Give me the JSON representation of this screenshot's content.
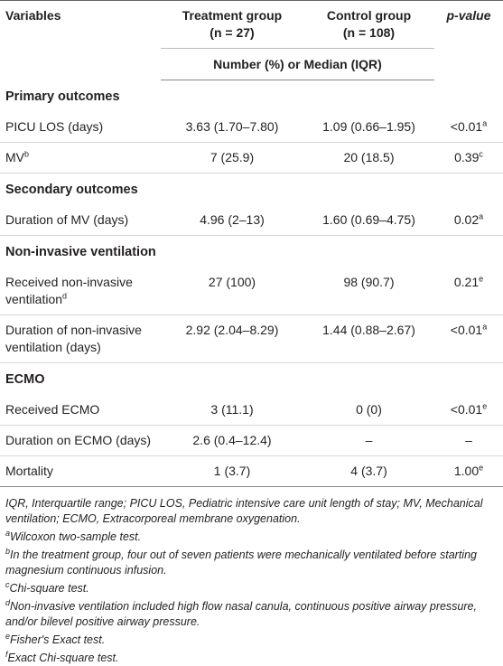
{
  "header": {
    "variables": "Variables",
    "treatment": [
      "Treatment group",
      "(n = 27)"
    ],
    "control": [
      "Control group",
      "(n = 108)"
    ],
    "p_value": "p-value",
    "subheader": "Number (%) or Median (IQR)"
  },
  "sections": [
    {
      "title": "Primary outcomes",
      "rows": [
        {
          "label": "PICU LOS (days)",
          "treatment": "3.63 (1.70–7.80)",
          "control": "1.09 (0.66–1.95)",
          "p": "<0.01",
          "p_note": "a"
        },
        {
          "label": "MV",
          "label_note": "b",
          "treatment": "7 (25.9)",
          "control": "20 (18.5)",
          "p": "0.39",
          "p_note": "c"
        }
      ]
    },
    {
      "title": "Secondary outcomes",
      "rows": [
        {
          "label": "Duration of MV (days)",
          "treatment": "4.96 (2–13)",
          "control": "1.60 (0.69–4.75)",
          "p": "0.02",
          "p_note": "a"
        }
      ]
    },
    {
      "title": "Non-invasive ventilation",
      "rows": [
        {
          "label": "Received non-invasive ventilation",
          "label_note": "d",
          "treatment": "27 (100)",
          "control": "98 (90.7)",
          "p": "0.21",
          "p_note": "e"
        },
        {
          "label": "Duration of non-invasive ventilation (days)",
          "treatment": "2.92 (2.04–8.29)",
          "control": "1.44 (0.88–2.67)",
          "p": "<0.01",
          "p_note": "a"
        }
      ]
    },
    {
      "title": "ECMO",
      "rows": [
        {
          "label": "Received ECMO",
          "treatment": "3 (11.1)",
          "control": "0 (0)",
          "p": "<0.01",
          "p_note": "e"
        },
        {
          "label": "Duration on ECMO (days)",
          "treatment": "2.6 (0.4–12.4)",
          "control": "–",
          "p": "–"
        },
        {
          "label": "Mortality",
          "treatment": "1 (3.7)",
          "control": "4 (3.7)",
          "p": "1.00",
          "p_note": "e"
        }
      ]
    }
  ],
  "footnotes": [
    {
      "text": "IQR, Interquartile range; PICU LOS, Pediatric intensive care unit length of stay; MV, Mechanical ventilation; ECMO, Extracorporeal membrane oxygenation."
    },
    {
      "mark": "a",
      "text": "Wilcoxon two-sample test."
    },
    {
      "mark": "b",
      "text": "In the treatment group, four out of seven patients were mechanically ventilated before starting magnesium continuous infusion."
    },
    {
      "mark": "c",
      "text": "Chi-square test."
    },
    {
      "mark": "d",
      "text": "Non-invasive ventilation included high flow nasal canula, continuous positive airway pressure, and/or bilevel positive airway pressure."
    },
    {
      "mark": "e",
      "text": "Fisher's Exact test."
    },
    {
      "mark": "f",
      "text": "Exact Chi-square test."
    }
  ]
}
